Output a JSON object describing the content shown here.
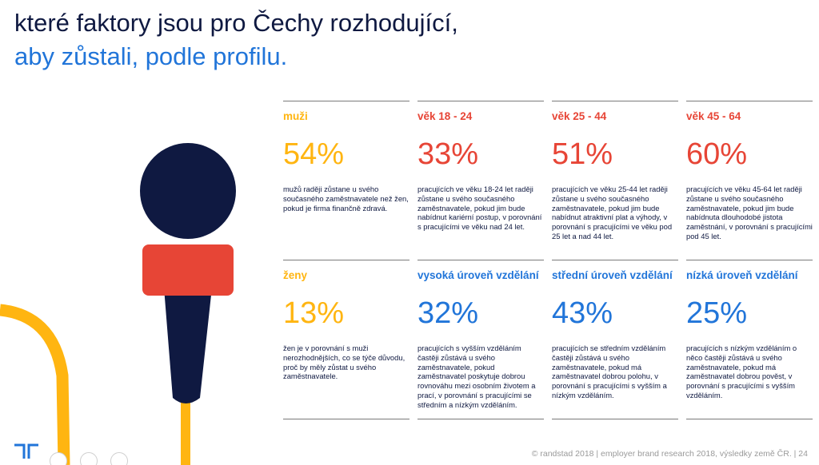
{
  "title": {
    "line1": "které faktory jsou pro Čechy rozhodující,",
    "line2": "aby zůstali, podle profilu."
  },
  "colors": {
    "navy": "#0f1941",
    "blue": "#2175d9",
    "yellow": "#ffb511",
    "red": "#e74536"
  },
  "cards": [
    {
      "label": "muži",
      "pct": "54%",
      "color": "#ffb511",
      "desc": "mužů raději zůstane u svého současného zaměstnavatele než žen, pokud je firma finančně zdravá."
    },
    {
      "label": "věk 18 - 24",
      "pct": "33%",
      "color": "#e74536",
      "desc": "pracujících ve věku 18-24 let raději zůstane u svého současného zaměstnavatele, pokud jim bude nabídnut kariérní postup, v porovnání s pracujícími ve věku nad 24 let."
    },
    {
      "label": "věk 25 - 44",
      "pct": "51%",
      "color": "#e74536",
      "desc": "pracujících ve věku 25-44 let raději zůstane u svého současného zaměstnavatele, pokud jim bude nabídnut atraktivní plat a výhody, v porovnání s pracujícími ve věku pod 25 let a nad 44 let."
    },
    {
      "label": "věk 45 - 64",
      "pct": "60%",
      "color": "#e74536",
      "desc": "pracujících ve věku 45-64 let raději zůstane u svého současného zaměstnavatele, pokud jim bude nabídnuta dlouhodobé jistota zaměstnání, v porovnání s pracujícími pod 45 let."
    },
    {
      "label": "ženy",
      "pct": "13%",
      "color": "#ffb511",
      "desc": "žen je v porovnání s muži nerozhodnějších, co se týče důvodu, proč by měly zůstat u svého zaměstnavatele."
    },
    {
      "label": "vysoká úroveň vzdělání",
      "pct": "32%",
      "color": "#2175d9",
      "desc": "pracujících s vyšším vzděláním častěji zůstává u svého zaměstnavatele, pokud zaměstnavatel poskytuje dobrou rovnováhu mezi osobním životem a prací, v porovnání s pracujícími se středním a nízkým vzděláním."
    },
    {
      "label": "střední úroveň vzdělání",
      "pct": "43%",
      "color": "#2175d9",
      "desc": "pracujících se středním vzděláním častěji zůstává u svého zaměstnavatele, pokud má zaměstnavatel dobrou polohu, v porovnání s pracujícími s vyšším a nízkým vzděláním."
    },
    {
      "label": "nízká úroveň vzdělání",
      "pct": "25%",
      "color": "#2175d9",
      "desc": "pracujících s nízkým vzděláním o něco častěji zůstává u svého zaměstnavatele, pokud má zaměstnavatel dobrou pověst, v porovnání s pracujícími s vyšším vzděláním."
    }
  ],
  "footer": "© randstad 2018 | employer brand research 2018, výsledky země ČR. | 24",
  "icons": {
    "logo": "randstad-logo-icon",
    "illustration": "microphone-illustration-icon"
  }
}
